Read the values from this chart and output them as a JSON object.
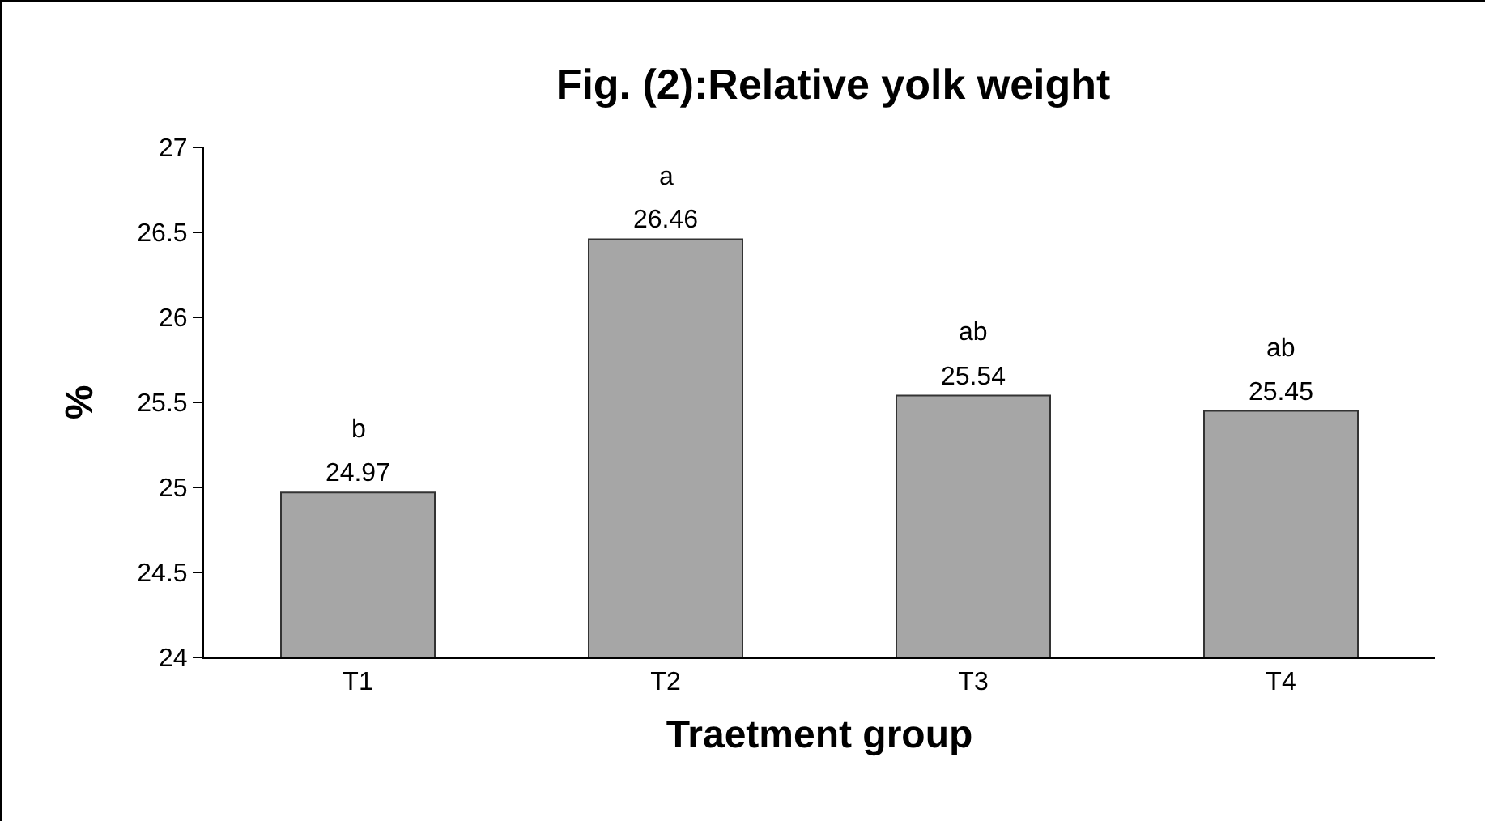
{
  "chart_data": {
    "type": "bar",
    "title": "Fig. (2):Relative yolk weight",
    "xlabel": "Traetment group",
    "ylabel": "%",
    "categories": [
      "T1",
      "T2",
      "T3",
      "T4"
    ],
    "values": [
      24.97,
      26.46,
      25.54,
      25.45
    ],
    "color": "#a6a6a6",
    "ylim": [
      24,
      27
    ],
    "yticks": [
      24,
      24.5,
      25,
      25.5,
      26,
      26.5,
      27
    ],
    "grid": false,
    "data_labels": true,
    "annotations": [
      {
        "text": "b",
        "x": "T1",
        "y": 24.97
      },
      {
        "text": "a",
        "x": "T2",
        "y": 26.46
      },
      {
        "text": "ab",
        "x": "T3",
        "y": 25.54
      },
      {
        "text": "ab",
        "x": "T4",
        "y": 25.45
      }
    ]
  }
}
